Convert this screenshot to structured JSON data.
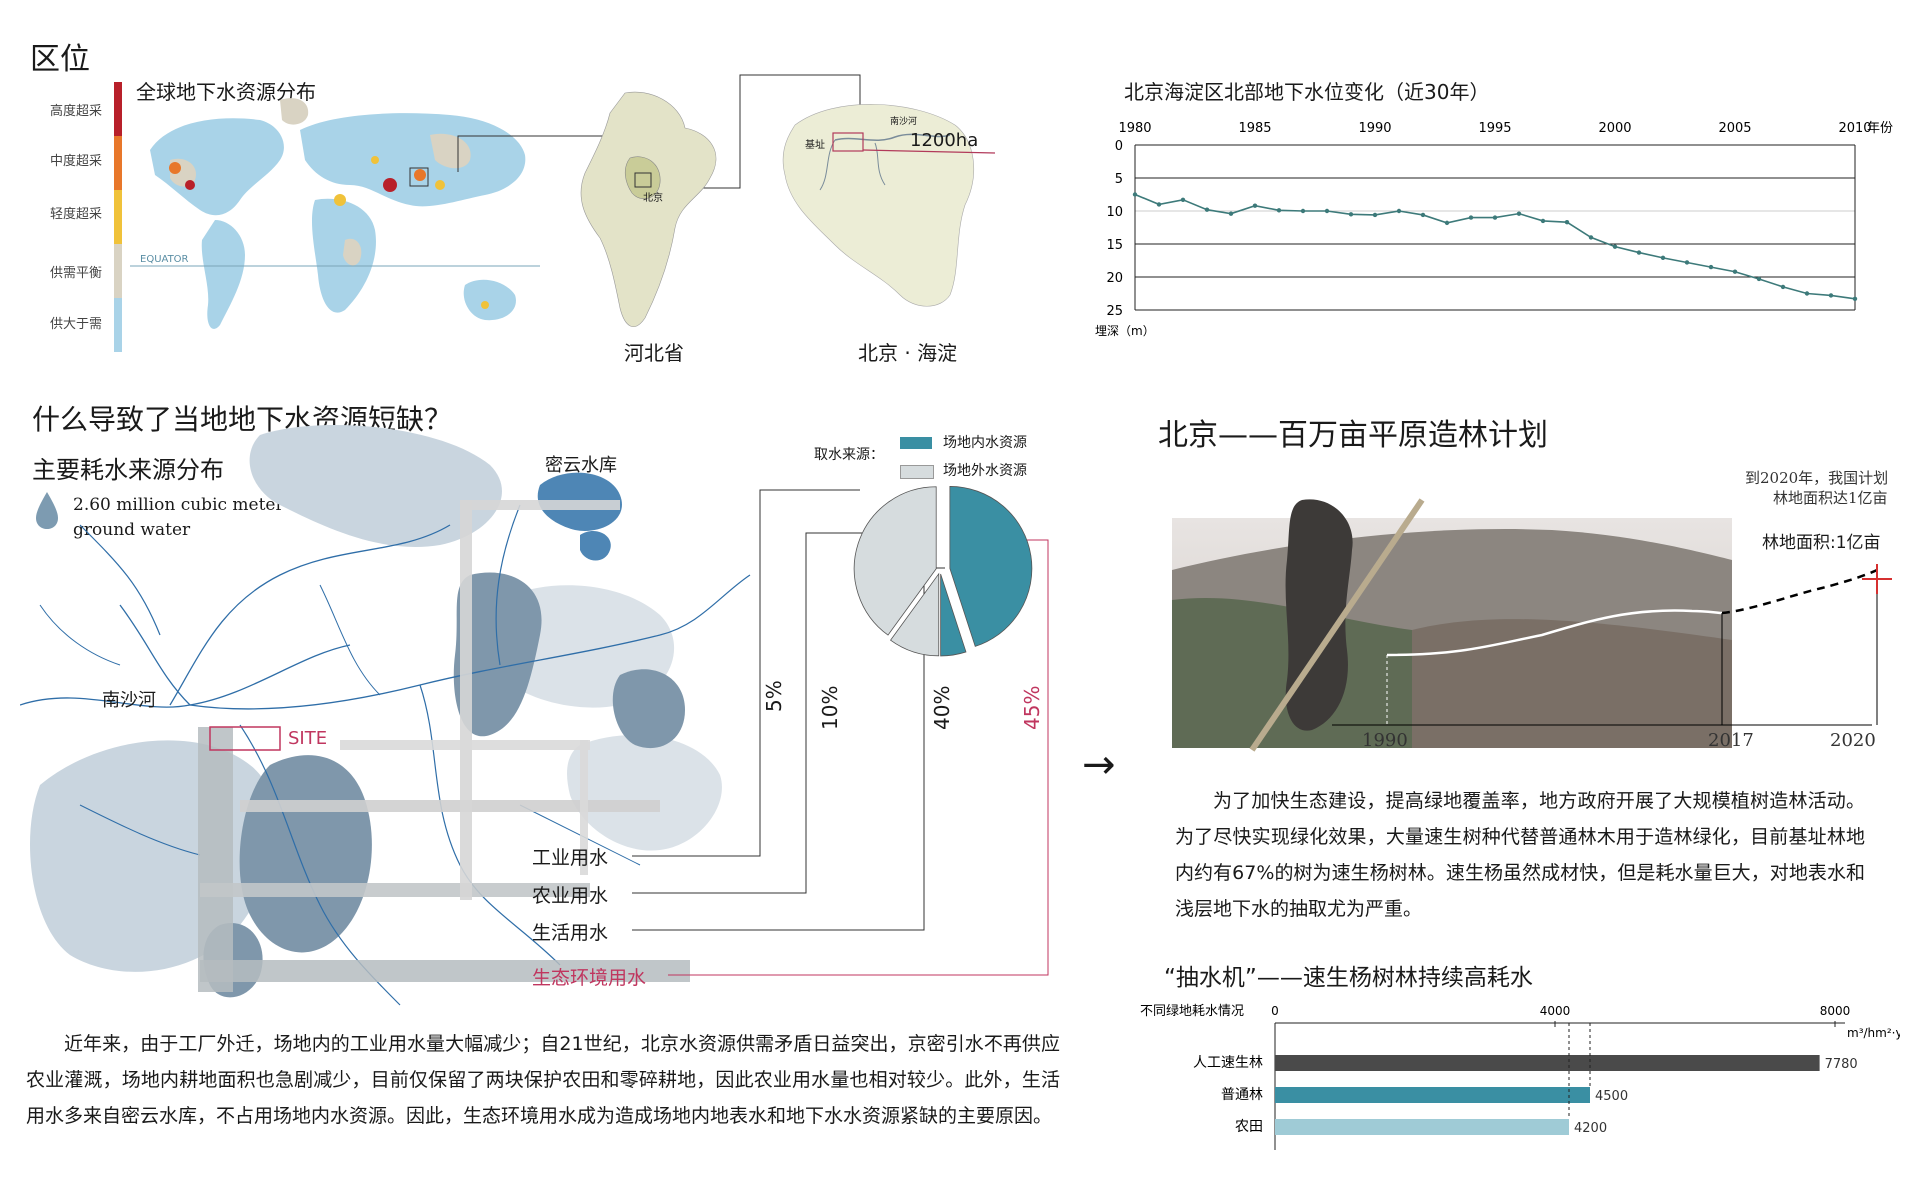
{
  "location": {
    "title": "区位",
    "global_title": "全球地下水资源分布",
    "legend": [
      "高度超采",
      "中度超采",
      "轻度超采",
      "供需平衡",
      "供大于需"
    ],
    "legend_colors": [
      "#b8202a",
      "#e8772a",
      "#f0c23a",
      "#d9d3c3",
      "#a9d3e8"
    ],
    "equator": "EQUATOR",
    "beijing_label": "北京",
    "hebei_label": "河北省",
    "haidian_label": "北京 · 海淀",
    "site_label": "基址",
    "river_label": "南沙河",
    "area": "1200ha"
  },
  "groundwater_chart": {
    "title": "北京海淀区北部地下水位变化（近30年）",
    "x_unit": "年份",
    "y_unit": "埋深（m）",
    "x_ticks": [
      "1980",
      "1985",
      "1990",
      "1995",
      "2000",
      "2005",
      "2010"
    ],
    "y_ticks": [
      "0",
      "5",
      "10",
      "15",
      "20",
      "25"
    ]
  },
  "cause": {
    "question": "什么导致了当地地下水资源短缺？",
    "subtitle": "主要耗水来源分布",
    "drop_text_1": "2.60 million cubic meter",
    "drop_text_2": "ground water",
    "reservoir": "密云水库",
    "river": "南沙河",
    "site": "SITE",
    "pie_legend_title": "取水来源：",
    "pie_legend_inside": "场地内水资源",
    "pie_legend_outside": "场地外水资源",
    "uses": [
      "工业用水",
      "农业用水",
      "生活用水",
      "生态环境用水"
    ],
    "percents": [
      "5%",
      "10%",
      "40%",
      "45%"
    ],
    "paragraph": "近年来，由于工厂外迁，场地内的工业用水量大幅减少；自21世纪，北京水资源供需矛盾日益突出，京密引水不再供应农业灌溉，场地内耕地面积也急剧减少，目前仅保留了两块保护农田和零碎耕地，因此农业用水量也相对较少。此外，生活用水多来自密云水库，不占用场地内水资源。因此，生态环境用水成为造成场地内地表水和地下水水资源紧缺的主要原因。"
  },
  "forest": {
    "arrow": "→",
    "title": "北京——百万亩平原造林计划",
    "note_1": "到2020年，我国计划",
    "note_2": "林地面积达1亿亩",
    "target": "林地面积:1亿亩",
    "years": [
      "1990",
      "2017",
      "2020"
    ],
    "paragraph": "为了加快生态建设，提高绿地覆盖率，地方政府开展了大规模植树造林活动。为了尽快实现绿化效果，大量速生树种代替普通林木用于造林绿化，目前基址林地内约有67%的树为速生杨树林。速生杨虽然成材快，但是耗水量巨大，对地表水和浅层地下水的抽取尤为严重。"
  },
  "water_use": {
    "title": "“抽水机”——速生杨树林持续高耗水",
    "axis_label": "不同绿地耗水情况",
    "unit": "m³/hm²·y⁻¹",
    "ticks": [
      "0",
      "4000",
      "8000"
    ]
  },
  "chart_data": [
    {
      "type": "line",
      "title": "北京海淀区北部地下水位变化（近30年）",
      "xlabel": "年份",
      "ylabel": "埋深（m）",
      "xlim": [
        1980,
        2010
      ],
      "ylim": [
        25,
        0
      ],
      "x": [
        1980,
        1981,
        1982,
        1983,
        1984,
        1985,
        1986,
        1987,
        1988,
        1989,
        1990,
        1991,
        1992,
        1993,
        1994,
        1995,
        1996,
        1997,
        1998,
        1999,
        2000,
        2001,
        2002,
        2003,
        2004,
        2005,
        2006,
        2007,
        2008,
        2009,
        2010
      ],
      "values": [
        7.5,
        9,
        8.3,
        9.8,
        10.4,
        9.2,
        9.9,
        10,
        10,
        10.5,
        10.6,
        10,
        10.6,
        11.8,
        11,
        11,
        10.4,
        11.5,
        11.7,
        14,
        15.4,
        16.3,
        17.1,
        17.8,
        18.5,
        19.2,
        20.3,
        21.5,
        22.5,
        22.8,
        23.3
      ],
      "grid": true
    },
    {
      "type": "pie",
      "categories": [
        "工业用水",
        "农业用水",
        "生活用水",
        "生态环境用水"
      ],
      "values": [
        5,
        10,
        40,
        45
      ],
      "source": [
        "场地内水资源",
        "场地内水资源",
        "场地外水资源",
        "场地内水资源"
      ],
      "colors": [
        "#3a8fa3",
        "#d6dcde",
        "#d6dcde",
        "#3a8fa3"
      ]
    },
    {
      "type": "bar",
      "orientation": "horizontal",
      "title": "“抽水机”——速生杨树林持续高耗水",
      "ylabel": "不同绿地耗水情况",
      "unit": "m³/hm²·y⁻¹",
      "categories": [
        "人工速生林",
        "普通林",
        "农田"
      ],
      "values": [
        7780,
        4500,
        4200
      ],
      "colors": [
        "#4a4a4a",
        "#3a8fa3",
        "#9fcbd6"
      ],
      "xlim": [
        0,
        8000
      ]
    }
  ]
}
